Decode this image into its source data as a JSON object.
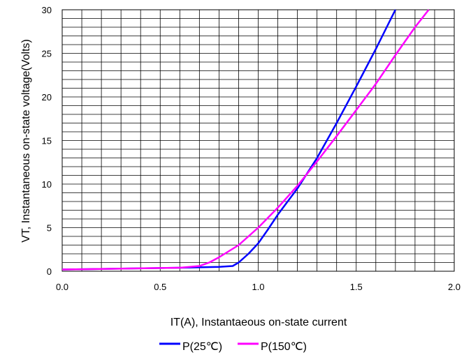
{
  "chart_data": {
    "type": "line",
    "title": "",
    "xlabel": "IT(A), Instantaeous on-state current",
    "ylabel": "VT, Instantaneous on-state voltage(Volts)",
    "xlim": [
      0,
      2.0
    ],
    "ylim": [
      0,
      30
    ],
    "x_ticks": [
      "0.0",
      "0.5",
      "1.0",
      "1.5",
      "2.0"
    ],
    "x_tick_values": [
      0,
      0.5,
      1.0,
      1.5,
      2.0
    ],
    "y_ticks": [
      "0",
      "5",
      "10",
      "15",
      "20",
      "25",
      "30"
    ],
    "y_tick_values": [
      0,
      5,
      10,
      15,
      20,
      25,
      30
    ],
    "grid": true,
    "legend_position": "bottom-center",
    "series": [
      {
        "name": "P(25℃)",
        "color": "#0000ff",
        "x": [
          0.0,
          0.3,
          0.6,
          0.8,
          0.87,
          0.9,
          0.95,
          1.0,
          1.05,
          1.1,
          1.2,
          1.3,
          1.4,
          1.5,
          1.6,
          1.7
        ],
        "y": [
          0.2,
          0.3,
          0.4,
          0.5,
          0.6,
          1.0,
          2.0,
          3.2,
          4.8,
          6.5,
          9.5,
          13.0,
          17.0,
          21.2,
          25.5,
          30.0
        ]
      },
      {
        "name": "P(150℃)",
        "color": "#ff00ff",
        "x": [
          0.0,
          0.3,
          0.6,
          0.7,
          0.75,
          0.8,
          0.9,
          1.0,
          1.1,
          1.2,
          1.3,
          1.4,
          1.5,
          1.6,
          1.7,
          1.8,
          1.87
        ],
        "y": [
          0.2,
          0.3,
          0.4,
          0.6,
          1.0,
          1.6,
          3.0,
          5.0,
          7.3,
          9.8,
          12.6,
          15.5,
          18.5,
          21.5,
          24.8,
          28.0,
          30.0
        ]
      }
    ]
  }
}
